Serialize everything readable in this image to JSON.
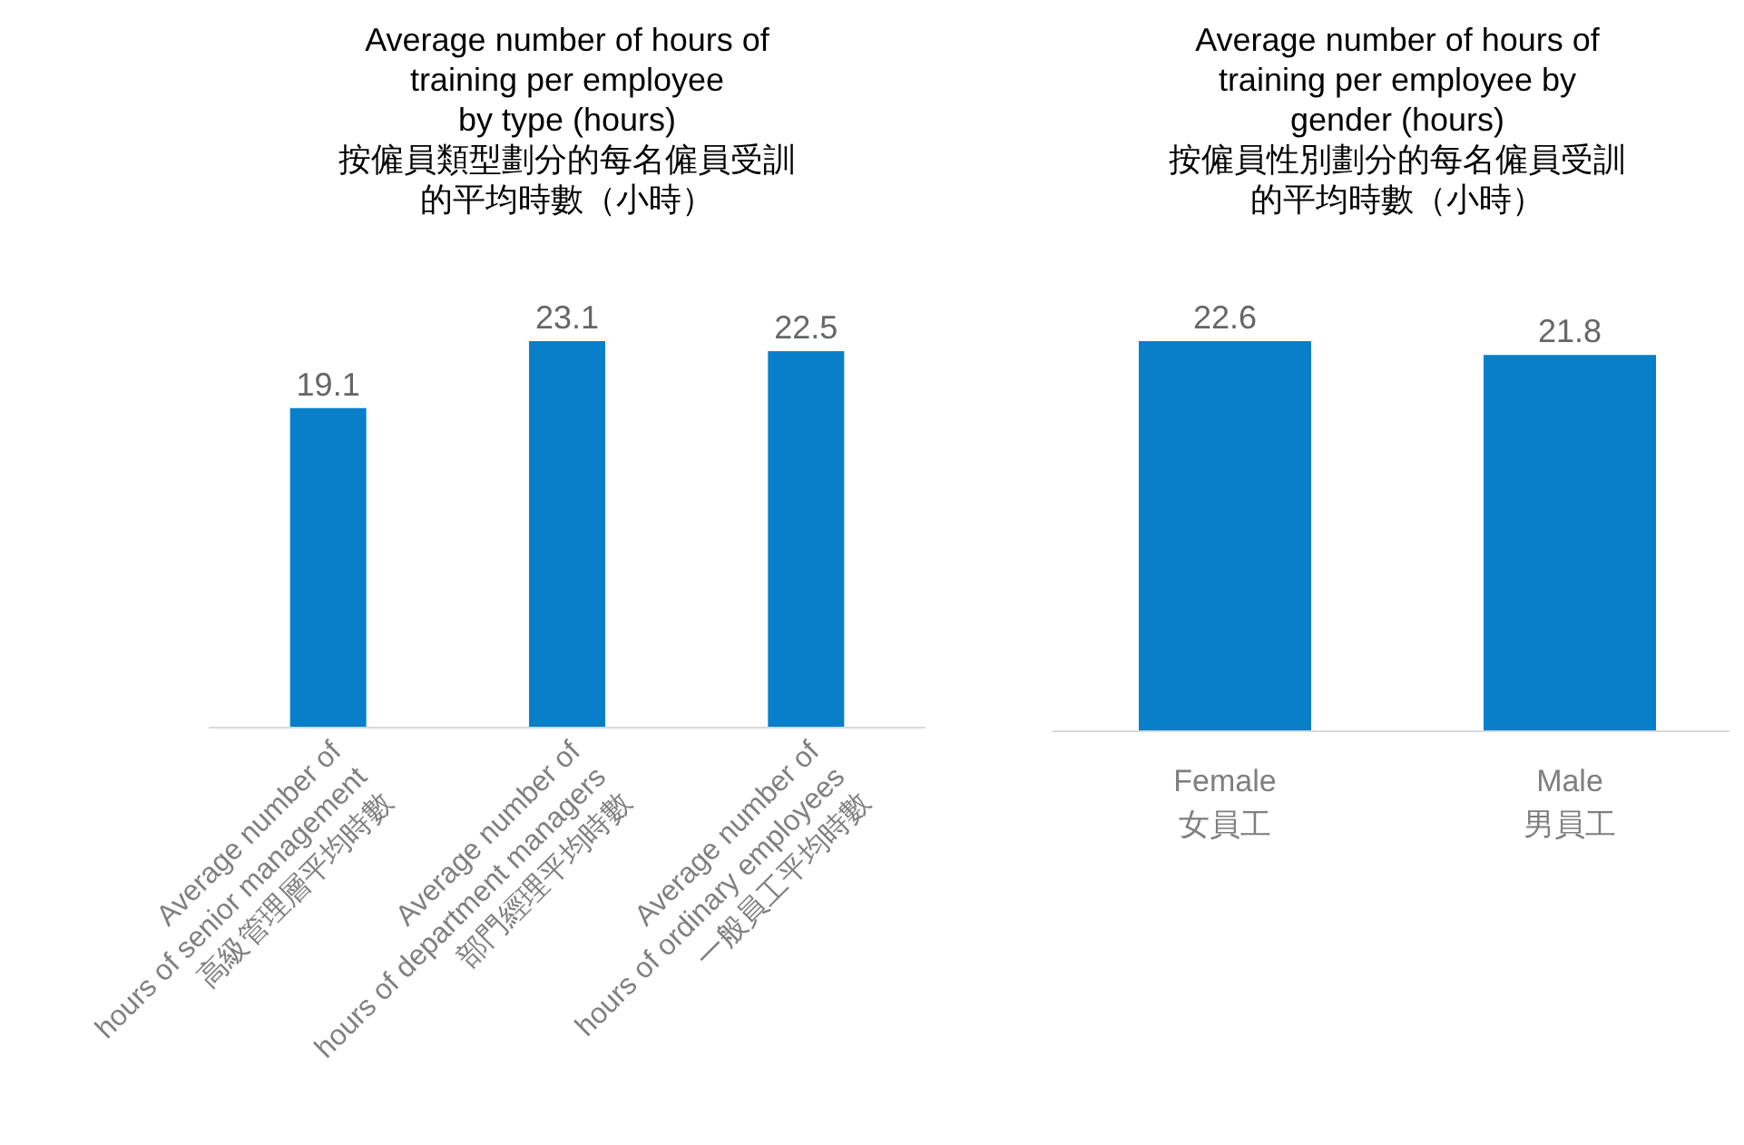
{
  "chart_data": [
    {
      "type": "bar",
      "title": "Average number of hours of\ntraining per employee\nby type (hours)\n按僱員類型劃分的每名僱員受訓的平均時數（小時）",
      "categories": [
        "Average number of\nhours of senior management\n高級管理層平均時數",
        "Average number of\nhours of department managers\n部門經理平均時數",
        "Average number of\nhours of ordinary employees\n一般員工平均時數"
      ],
      "values": [
        19.1,
        23.1,
        22.5
      ],
      "color": "#0a7fc9",
      "data_labels": true
    },
    {
      "type": "bar",
      "title": "Average number of hours of\ntraining per employee by\ngender (hours)\n按僱員性別劃分的每名僱員受訓的平均時數（小時）",
      "categories": [
        "Female\n女員工",
        "Male\n男員工"
      ],
      "values": [
        22.6,
        21.8
      ],
      "color": "#0a7fc9",
      "data_labels": true
    }
  ]
}
